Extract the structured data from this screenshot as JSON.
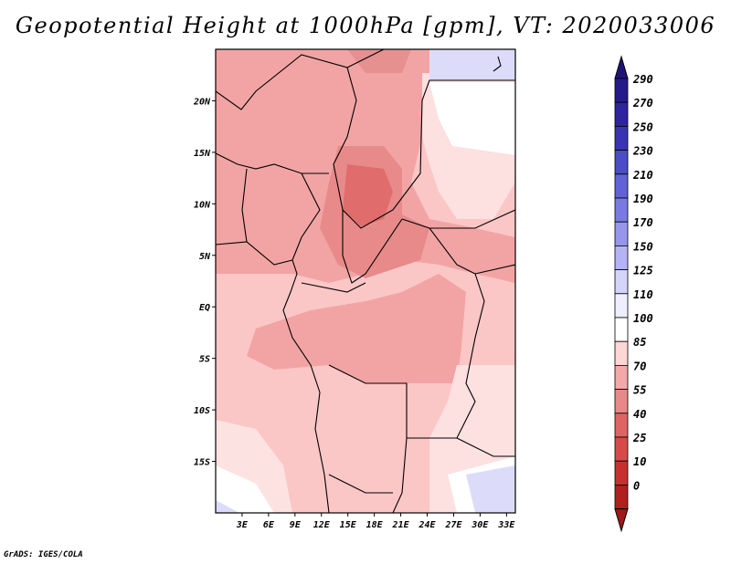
{
  "title": "Geopotential Height at 1000hPa [gpm], VT: 2020033006",
  "credit": "GrADS: IGES/COLA",
  "map": {
    "lon_range": [
      0,
      34
    ],
    "lat_range": [
      -20,
      25
    ],
    "lon_ticks": [
      {
        "value": 3,
        "label": "3E"
      },
      {
        "value": 6,
        "label": "6E"
      },
      {
        "value": 9,
        "label": "9E"
      },
      {
        "value": 12,
        "label": "12E"
      },
      {
        "value": 15,
        "label": "15E"
      },
      {
        "value": 18,
        "label": "18E"
      },
      {
        "value": 21,
        "label": "21E"
      },
      {
        "value": 24,
        "label": "24E"
      },
      {
        "value": 27,
        "label": "27E"
      },
      {
        "value": 30,
        "label": "30E"
      },
      {
        "value": 33,
        "label": "33E"
      }
    ],
    "lat_ticks": [
      {
        "value": 20,
        "label": "20N"
      },
      {
        "value": 15,
        "label": "15N"
      },
      {
        "value": 10,
        "label": "10N"
      },
      {
        "value": 5,
        "label": "5N"
      },
      {
        "value": 0,
        "label": "EQ"
      },
      {
        "value": -5,
        "label": "5S"
      },
      {
        "value": -10,
        "label": "10S"
      },
      {
        "value": -15,
        "label": "15S"
      }
    ]
  },
  "colorbar": {
    "levels": [
      {
        "label": "290",
        "color": "#241a8c"
      },
      {
        "label": "270",
        "color": "#2e24a0"
      },
      {
        "label": "250",
        "color": "#3a34b4"
      },
      {
        "label": "230",
        "color": "#4a4cc8"
      },
      {
        "label": "210",
        "color": "#6262d8"
      },
      {
        "label": "190",
        "color": "#7a7ae4"
      },
      {
        "label": "170",
        "color": "#9696ee"
      },
      {
        "label": "150",
        "color": "#b4b4f4"
      },
      {
        "label": "125",
        "color": "#d4d4fa"
      },
      {
        "label": "110",
        "color": "#eeeeff"
      },
      {
        "label": "100",
        "color": "#ffffff"
      },
      {
        "label": "85",
        "color": "#fdd6d6"
      },
      {
        "label": "70",
        "color": "#f4a8a8"
      },
      {
        "label": "55",
        "color": "#e88888"
      },
      {
        "label": "40",
        "color": "#e06464"
      },
      {
        "label": "25",
        "color": "#d84a4a"
      },
      {
        "label": "10",
        "color": "#c83030"
      },
      {
        "label": "0",
        "color": "#b02020"
      }
    ],
    "top_color": "#1e1478",
    "bottom_color": "#a01818"
  }
}
